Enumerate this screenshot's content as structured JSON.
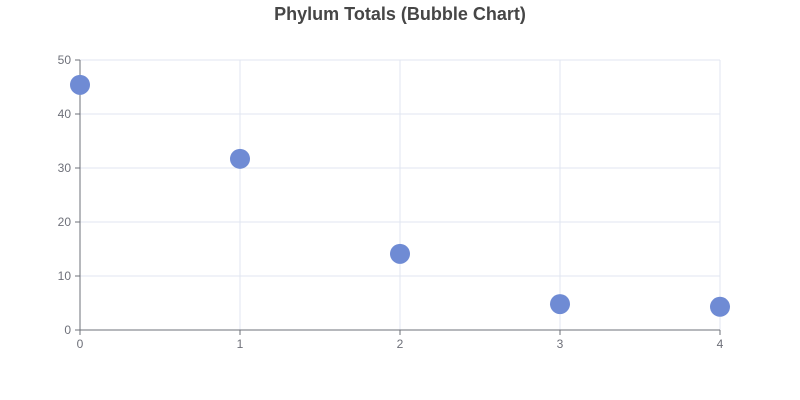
{
  "chart_data": {
    "type": "scatter",
    "title": "Phylum Totals (Bubble Chart)",
    "xlabel": "",
    "ylabel": "",
    "x_ticks": [
      "0",
      "1",
      "2",
      "3",
      "4"
    ],
    "y_ticks": [
      "0",
      "10",
      "20",
      "30",
      "40",
      "50"
    ],
    "xlim": [
      0,
      4
    ],
    "ylim": [
      0,
      50
    ],
    "grid": true,
    "legend": "none",
    "series": [
      {
        "color": "#6f8bd4",
        "points": [
          {
            "x": 0,
            "y": 45.4
          },
          {
            "x": 1,
            "y": 31.7
          },
          {
            "x": 2,
            "y": 14.1
          },
          {
            "x": 3,
            "y": 4.8
          },
          {
            "x": 4,
            "y": 4.3
          }
        ]
      }
    ]
  }
}
